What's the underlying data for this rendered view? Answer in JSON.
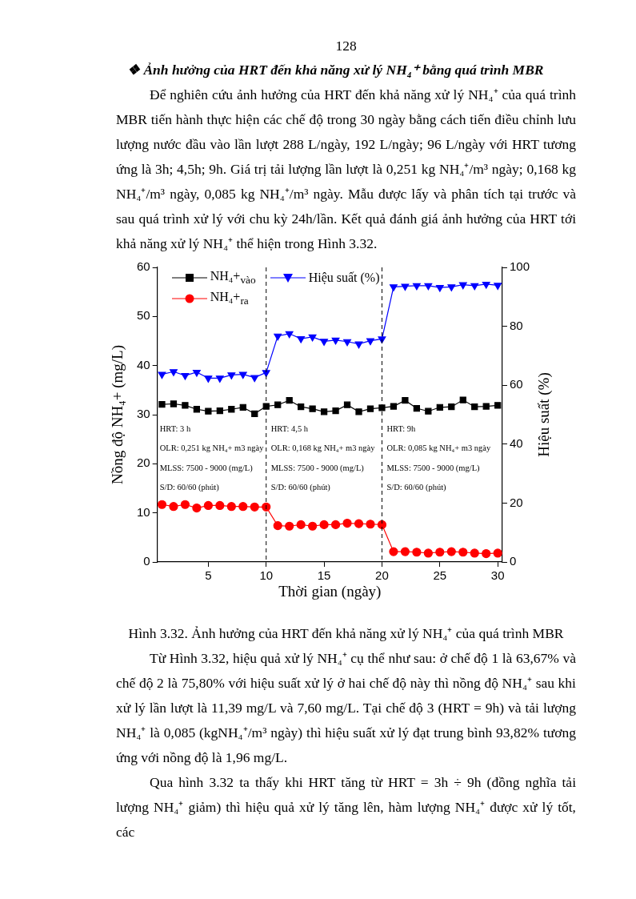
{
  "chart_data": {
    "type": "line",
    "title": "❖ Ảnh hưởng của HRT đến khả năng xử lý NH₄⁺ bằng quá trình MBR",
    "subtitle": "Để nghiên cứu ảnh hưởng của HRT đến khả năng xử lý NH₄⁺ của quá trình MBR tiến hành thực hiện các chế độ trong 30 ngày bằng cách tiến điều chỉnh lưu lượng nước đầu vào lần lượt 288 L/ngày, 192 L/ngày; 96 L/ngày với HRT tương ứng là 3h; 4,5h; 9h. Giá trị tải lượng lần lượt là 0,251 kg NH₄⁺/m³ ngày; 0,168 kg NH₄⁺/m³ ngày, 0,085 kg NH₄⁺/m³ ngày. Mẫu được lấy và phân tích tại trước và sau quá trình xử lý với chu kỳ 24h/lần. Kết quả đánh giá ảnh hưởng của HRT tới khả năng xử lý NH₄⁺ thể hiện trong Hình 3.32.",
    "xlabel": "Thời gian (ngày)",
    "ylabel": "Nồng độ NH₄+ (mg/L)",
    "y2label": "Hiệu suất (%)",
    "x": [
      1,
      2,
      3,
      4,
      5,
      6,
      7,
      8,
      9,
      10,
      11,
      12,
      13,
      14,
      15,
      16,
      17,
      18,
      19,
      20,
      21,
      22,
      23,
      24,
      25,
      26,
      27,
      28,
      29,
      30
    ],
    "series": [
      {
        "name": "NH₄+$_{vào}$",
        "color": "#000000",
        "marker": "square",
        "values": [
          32.1,
          32.2,
          31.9,
          31.1,
          30.7,
          30.8,
          31.1,
          31.5,
          30.2,
          31.7,
          32.0,
          32.9,
          31.6,
          31.2,
          30.6,
          30.8,
          32.0,
          30.6,
          31.2,
          31.4,
          31.7,
          32.9,
          31.3,
          30.7,
          31.5,
          31.6,
          33.0,
          31.6,
          31.7,
          31.9
        ]
      },
      {
        "name": "NH₄+$_{ra}$",
        "color": "#ff0000",
        "marker": "circle",
        "values": [
          11.7,
          11.3,
          11.7,
          11.0,
          11.5,
          11.5,
          11.3,
          11.3,
          11.2,
          11.2,
          7.4,
          7.3,
          7.6,
          7.3,
          7.6,
          7.6,
          7.9,
          7.8,
          7.7,
          7.6,
          2.1,
          2.1,
          2.0,
          1.8,
          2.0,
          2.1,
          2.0,
          1.8,
          1.7,
          1.8
        ]
      },
      {
        "name": "Hiệu suất (%)",
        "color": "#0000ff",
        "marker": "triangle",
        "axis": "y2",
        "values": [
          63.7,
          64.6,
          63.3,
          64.4,
          62.4,
          62.4,
          63.5,
          63.7,
          62.6,
          64.3,
          76.7,
          77.5,
          75.8,
          76.4,
          74.9,
          75.3,
          74.8,
          74.0,
          75.1,
          75.7,
          93.4,
          93.6,
          93.8,
          93.8,
          93.2,
          93.4,
          94.1,
          93.8,
          94.3,
          93.9
        ]
      }
    ],
    "xlim": [
      0.6,
      30.4
    ],
    "xticks": [
      5,
      10,
      15,
      20,
      25,
      30
    ],
    "ylim": [
      0,
      60
    ],
    "yticks": [
      0,
      10,
      20,
      30,
      40,
      50,
      60
    ],
    "y2lim": [
      0,
      100
    ],
    "y2ticks": [
      0,
      20,
      40,
      60,
      80,
      100
    ],
    "legend": "top left",
    "ref_lines": [
      {
        "axis": "x",
        "value": 10,
        "line_style": "dashed",
        "color": "#000000"
      },
      {
        "axis": "x",
        "value": 20,
        "line_style": "dashed",
        "color": "#000000"
      }
    ],
    "annotations": [
      "128",
      "HRT: 3 h\nOLR: 0,251 kg NH₄+ m3 ngày\nMLSS: 7500 - 9000 (mg/L)\nS/D: 60/60 (phút)",
      "HRT: 4,5 h\nOLR: 0,168 kg NH₄+ m3 ngày\nMLSS: 7500 - 9000 (mg/L)\nS/D: 60/60 (phút)",
      "HRT: 9h\nOLR: 0,085 kg NH₄+ m3 ngày\nMLSS: 7500 - 9000 (mg/L)\nS/D: 60/60 (phút)",
      "Hình 3.32. Ảnh hưởng của HRT đến khả năng xử lý NH₄⁺ của quá trình MBR",
      "Từ Hình 3.32, hiệu quả xử lý NH₄⁺ cụ thể như sau: ở chế độ 1 là 63,67% và chế độ 2 là 75,80% với hiệu suất xử lý ở hai chế độ này thì nồng độ NH₄⁺ sau khi xử lý lần lượt là 11,39 mg/L và 7,60 mg/L. Tại chế độ 3 (HRT = 9h) và tải lượng NH₄⁺ là 0,085 (kgNH₄⁺/m³ ngày) thì hiệu suất xử lý đạt trung bình 93,82% tương ứng với nồng độ là 1,96 mg/L.",
      "Qua hình 3.32 ta thấy khi HRT tăng từ HRT = 3h ÷ 9h (đồng nghĩa tải lượng NH₄⁺ giảm) thì hiệu quả xử lý tăng lên, hàm lượng NH₄⁺ được xử lý tốt, các"
    ]
  }
}
